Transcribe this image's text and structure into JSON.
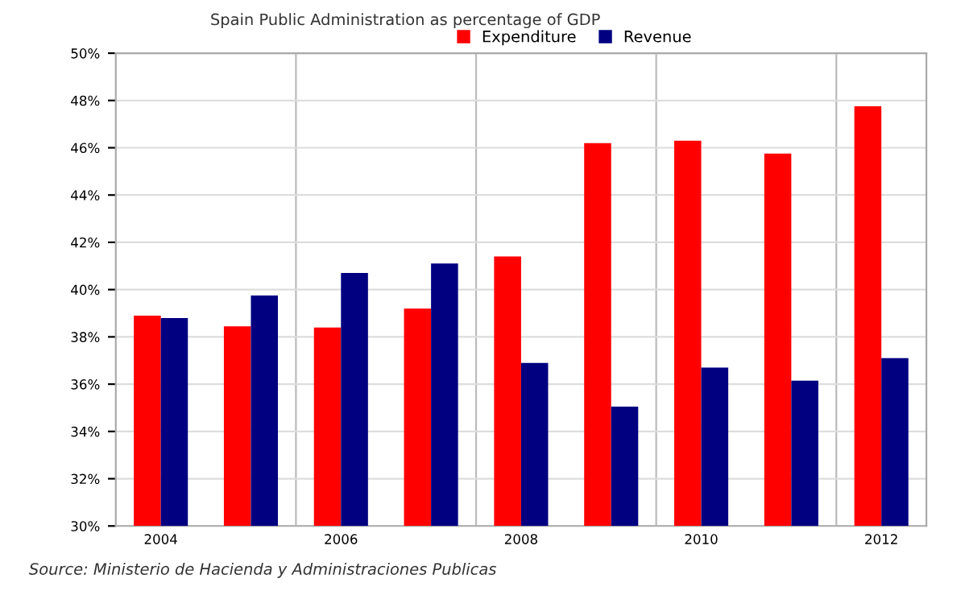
{
  "chart_data": {
    "type": "bar",
    "title": "Spain Public Administration as percentage of GDP",
    "categories": [
      "2004",
      null,
      "2006",
      null,
      "2008",
      null,
      "2010",
      null,
      "2012"
    ],
    "series": [
      {
        "name": "Expenditure",
        "color": "#ff0000",
        "values": [
          38.9,
          38.45,
          38.4,
          39.2,
          41.4,
          46.2,
          46.3,
          45.75,
          47.75
        ]
      },
      {
        "name": "Revenue",
        "color": "#000080",
        "values": [
          38.8,
          39.75,
          40.7,
          41.1,
          36.9,
          35.05,
          36.7,
          36.15,
          37.1
        ]
      }
    ],
    "ylim": [
      30,
      50
    ],
    "yticks": [
      {
        "value": 30,
        "label": "30%"
      },
      {
        "value": 32,
        "label": "32%"
      },
      {
        "value": 34,
        "label": "34%"
      },
      {
        "value": 36,
        "label": "36%"
      },
      {
        "value": 38,
        "label": "38%"
      },
      {
        "value": 40,
        "label": "40%"
      },
      {
        "value": 42,
        "label": "42%"
      },
      {
        "value": 44,
        "label": "44%"
      },
      {
        "value": 46,
        "label": "46%"
      },
      {
        "value": 48,
        "label": "48%"
      },
      {
        "value": 50,
        "label": "50%"
      }
    ],
    "grid": true,
    "legend": "top",
    "annotations": [
      "Source: Ministerio de Hacienda y Administraciones Publicas"
    ]
  }
}
